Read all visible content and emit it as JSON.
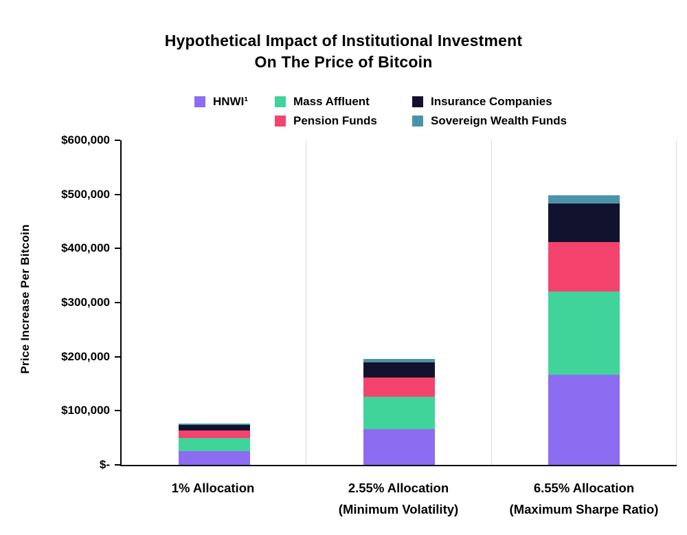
{
  "chart_data": {
    "type": "bar",
    "stacked": true,
    "title": "Hypothetical Impact of Institutional Investment On The Price of Bitcoin",
    "title_lines": [
      "Hypothetical Impact of Institutional Investment",
      "On The Price of Bitcoin"
    ],
    "ylabel": "Price Increase Per Bitcoin",
    "xlabel": "",
    "ylim": [
      0,
      600000
    ],
    "grid": false,
    "legend_position": "top",
    "y_ticks": [
      "$-",
      "$100,000",
      "$200,000",
      "$300,000",
      "$400,000",
      "$500,000",
      "$600,000"
    ],
    "categories": [
      "1% Allocation",
      "2.55% Allocation (Minimum Volatility)",
      "6.55% Allocation (Maximum Sharpe Ratio)"
    ],
    "category_lines": [
      [
        "1% Allocation"
      ],
      [
        "2.55% Allocation",
        "(Minimum Volatility)"
      ],
      [
        "6.55% Allocation",
        "(Maximum Sharpe Ratio)"
      ]
    ],
    "series": [
      {
        "name": "HNWI¹",
        "color": "#8c6cf0",
        "values": [
          26000,
          66000,
          167000
        ]
      },
      {
        "name": "Mass Affluent",
        "color": "#40d49a",
        "values": [
          23000,
          60000,
          153000
        ]
      },
      {
        "name": "Pension Funds",
        "color": "#f4436d",
        "values": [
          14000,
          36000,
          92000
        ]
      },
      {
        "name": "Insurance Companies",
        "color": "#12122e",
        "values": [
          11000,
          28000,
          71000
        ]
      },
      {
        "name": "Sovereign Wealth Funds",
        "color": "#4b93a8",
        "values": [
          2500,
          6500,
          15500
        ]
      }
    ],
    "legend_layout": [
      [
        0,
        1,
        3
      ],
      [
        -1,
        2,
        4
      ]
    ]
  }
}
